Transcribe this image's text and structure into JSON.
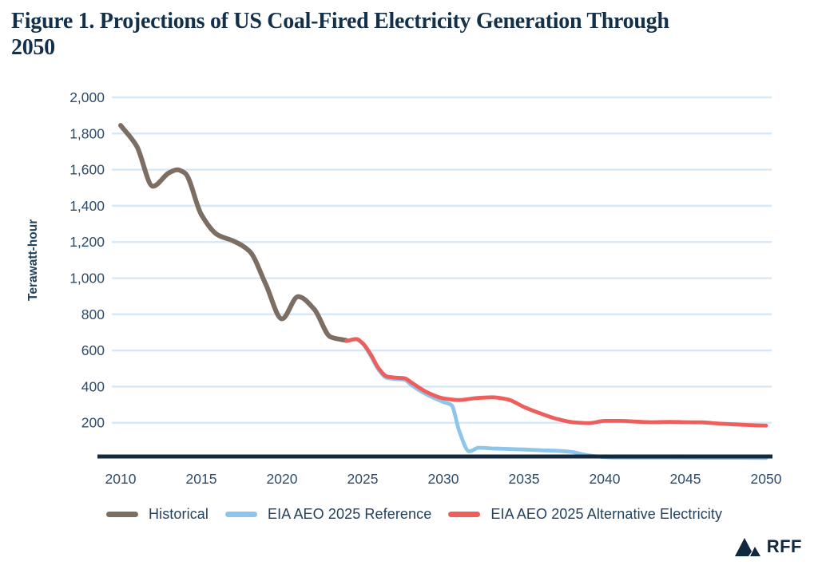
{
  "figure": {
    "title_line1": "Figure 1. Projections of US Coal-Fired Electricity Generation Through",
    "title_line2": "2050"
  },
  "colors": {
    "title_text": "#13304b",
    "tick_text": "#2e4c69",
    "axis_label_text": "#22415e",
    "gridline": "#d9e8f6",
    "axis_line": "#15293c",
    "background": "#ffffff"
  },
  "chart_data": {
    "type": "line",
    "title": "Figure 1. Projections of US Coal-Fired Electricity Generation Through 2050",
    "xlabel": "",
    "ylabel": "Terawatt-hour",
    "ylim": [
      0,
      2000
    ],
    "xlim": [
      2010,
      2050
    ],
    "grid": "horizontal",
    "legend_position": "bottom",
    "y_ticks": [
      {
        "value": 200,
        "label": "200"
      },
      {
        "value": 400,
        "label": "400"
      },
      {
        "value": 600,
        "label": "600"
      },
      {
        "value": 800,
        "label": "800"
      },
      {
        "value": 1000,
        "label": "1,000"
      },
      {
        "value": 1200,
        "label": "1,200"
      },
      {
        "value": 1400,
        "label": "1,400"
      },
      {
        "value": 1600,
        "label": "1,600"
      },
      {
        "value": 1800,
        "label": "1,800"
      },
      {
        "value": 2000,
        "label": "2,000"
      }
    ],
    "x_ticks": [
      {
        "value": 2010,
        "label": "2010"
      },
      {
        "value": 2015,
        "label": "2015"
      },
      {
        "value": 2020,
        "label": "2020"
      },
      {
        "value": 2025,
        "label": "2025"
      },
      {
        "value": 2030,
        "label": "2030"
      },
      {
        "value": 2035,
        "label": "2035"
      },
      {
        "value": 2040,
        "label": "2040"
      },
      {
        "value": 2045,
        "label": "2045"
      },
      {
        "value": 2050,
        "label": "2050"
      }
    ],
    "series": [
      {
        "name": "Historical",
        "color": "#7d6e63",
        "stroke_width": 6,
        "x": [
          2010,
          2011,
          2012,
          2013,
          2013.5,
          2014,
          2015,
          2016,
          2017,
          2018,
          2019,
          2020,
          2021,
          2022,
          2023,
          2024
        ],
        "values": [
          1845,
          1730,
          1508,
          1583,
          1599,
          1580,
          1352,
          1240,
          1205,
          1148,
          965,
          775,
          898,
          828,
          675,
          655
        ]
      },
      {
        "name": "EIA AEO 2025 Reference",
        "color": "#8ec5ea",
        "stroke_width": 4.8,
        "x": [
          2024,
          2024.6,
          2025,
          2025.5,
          2026,
          2026.5,
          2027,
          2027.6,
          2028,
          2029,
          2030,
          2030.5,
          2031,
          2031.6,
          2032.2,
          2033,
          2034,
          2035,
          2036,
          2037,
          2038,
          2038.6,
          2039.5,
          2040.5,
          2042,
          2044,
          2046,
          2048,
          2050
        ],
        "values": [
          652,
          662,
          638,
          570,
          492,
          448,
          442,
          438,
          410,
          355,
          315,
          298,
          150,
          42,
          62,
          58,
          55,
          52,
          48,
          45,
          38,
          26,
          14,
          8,
          7,
          7,
          6,
          6,
          5
        ]
      },
      {
        "name": "EIA AEO 2025 Alternative Electricity",
        "color": "#ee5f5c",
        "stroke_width": 4.8,
        "x": [
          2024,
          2024.6,
          2025,
          2025.5,
          2026,
          2026.5,
          2027,
          2027.6,
          2028,
          2029,
          2030,
          2031,
          2032,
          2033,
          2034,
          2035,
          2036,
          2037,
          2038,
          2039,
          2040,
          2041,
          2042,
          2043,
          2044,
          2045,
          2046,
          2047,
          2048,
          2049,
          2050
        ],
        "values": [
          652,
          663,
          640,
          578,
          500,
          456,
          450,
          446,
          424,
          368,
          335,
          326,
          336,
          341,
          329,
          287,
          252,
          222,
          203,
          198,
          210,
          210,
          206,
          203,
          205,
          203,
          202,
          196,
          191,
          187,
          184
        ]
      }
    ]
  },
  "legend": {
    "items": [
      {
        "label": "Historical",
        "color": "#7d6e63"
      },
      {
        "label": "EIA AEO 2025 Reference",
        "color": "#8ec5ea"
      },
      {
        "label": "EIA AEO 2025 Alternative Electricity",
        "color": "#ee5f5c"
      }
    ]
  },
  "branding": {
    "logo_text": "RFF"
  }
}
